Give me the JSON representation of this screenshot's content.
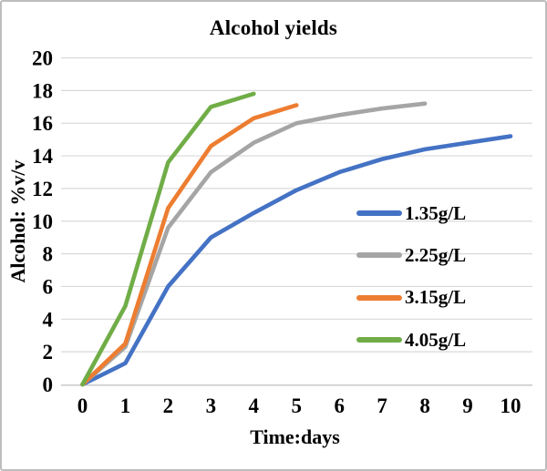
{
  "window": {
    "background": "#ffffff",
    "border_color": "#bdbdbd",
    "text_color": "#000000"
  },
  "chart_data": {
    "type": "line",
    "title": "Alcohol yields",
    "xlabel": "Time:days",
    "ylabel": "Alcohol: %v/v",
    "xlim": [
      0,
      10
    ],
    "ylim": [
      0,
      20
    ],
    "x_ticks": [
      0,
      1,
      2,
      3,
      4,
      5,
      6,
      7,
      8,
      9,
      10
    ],
    "y_ticks": [
      0,
      2,
      4,
      6,
      8,
      10,
      12,
      14,
      16,
      18,
      20
    ],
    "grid": "horizontal",
    "gridline_color": "#D9D9D9",
    "axis_line_color": "#C9C9C9",
    "legend_position": "inside-right",
    "series": [
      {
        "name": "1.35g/L",
        "color": "#4472C4",
        "x": [
          0,
          1,
          2,
          3,
          4,
          5,
          6,
          7,
          8,
          9,
          10
        ],
        "values": [
          0,
          1.3,
          6.0,
          9.0,
          10.5,
          11.9,
          13.0,
          13.8,
          14.4,
          14.8,
          15.2
        ]
      },
      {
        "name": "2.25g/L",
        "color": "#A5A5A5",
        "x": [
          0,
          1,
          2,
          3,
          4,
          5,
          6,
          7,
          8
        ],
        "values": [
          0,
          2.3,
          9.6,
          13.0,
          14.8,
          16.0,
          16.5,
          16.9,
          17.2
        ]
      },
      {
        "name": "3.15g/L",
        "color": "#ED7D31",
        "x": [
          0,
          1,
          2,
          3,
          4,
          5
        ],
        "values": [
          0,
          2.5,
          10.8,
          14.6,
          16.3,
          17.1
        ]
      },
      {
        "name": "4.05g/L",
        "color": "#70AD47",
        "x": [
          0,
          1,
          2,
          3,
          4
        ],
        "values": [
          0,
          4.8,
          13.6,
          17.0,
          17.8
        ]
      }
    ]
  }
}
